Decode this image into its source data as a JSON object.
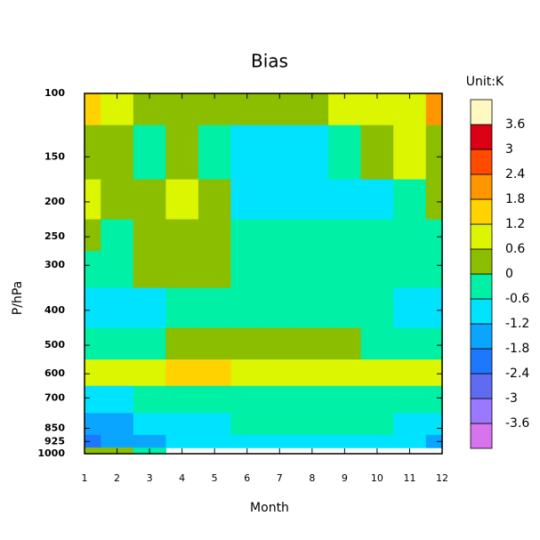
{
  "chart_data": {
    "type": "contour",
    "title": "Bias",
    "unit_label": "Unit:K",
    "x_label": "Month",
    "y_label": "P/hPa",
    "x": [
      1,
      2,
      3,
      4,
      5,
      6,
      7,
      8,
      9,
      10,
      11,
      12
    ],
    "y": [
      100,
      150,
      200,
      250,
      300,
      400,
      500,
      600,
      700,
      850,
      925,
      1000
    ],
    "xlim": [
      1,
      12
    ],
    "xticks": [
      1,
      2,
      3,
      4,
      5,
      6,
      7,
      8,
      9,
      10,
      11,
      12
    ],
    "ylim": [
      100,
      1000
    ],
    "yticks": [
      100,
      150,
      200,
      250,
      300,
      400,
      500,
      600,
      700,
      850,
      925,
      1000
    ],
    "y_scale": "log",
    "y_inverted": true,
    "z": [
      [
        1.3,
        0.8,
        0.3,
        0.3,
        0.3,
        0.2,
        0.2,
        0.1,
        0.8,
        0.8,
        1.0,
        1.9
      ],
      [
        0.3,
        0.3,
        -0.3,
        0.3,
        -0.3,
        -0.7,
        -0.7,
        -0.7,
        -0.5,
        0.3,
        0.7,
        0.2
      ],
      [
        0.8,
        0.3,
        0.3,
        0.8,
        0.2,
        -0.7,
        -0.8,
        -1.0,
        -0.8,
        -0.7,
        -0.3,
        0.3
      ],
      [
        0.3,
        -0.3,
        0.3,
        0.3,
        0.3,
        -0.3,
        -0.4,
        -0.5,
        -0.4,
        -0.3,
        -0.3,
        -0.2
      ],
      [
        -0.3,
        -0.3,
        0.2,
        0.2,
        0.1,
        -0.3,
        -0.3,
        -0.3,
        -0.3,
        -0.3,
        -0.3,
        -0.3
      ],
      [
        -0.7,
        -0.7,
        -0.7,
        -0.5,
        -0.3,
        -0.3,
        -0.3,
        -0.3,
        -0.3,
        -0.5,
        -0.7,
        -0.7
      ],
      [
        -0.2,
        -0.2,
        -0.2,
        0.1,
        0.2,
        0.2,
        0.2,
        0.1,
        0.1,
        -0.2,
        -0.2,
        -0.3
      ],
      [
        0.8,
        0.8,
        0.9,
        1.3,
        1.3,
        0.9,
        0.8,
        0.8,
        0.8,
        0.9,
        0.8,
        0.7
      ],
      [
        -0.7,
        -0.7,
        -0.5,
        -0.3,
        -0.3,
        -0.3,
        -0.3,
        -0.3,
        -0.3,
        -0.4,
        -0.5,
        -0.3
      ],
      [
        -1.5,
        -1.4,
        -1.0,
        -0.8,
        -0.7,
        -0.6,
        -0.5,
        -0.5,
        -0.5,
        -0.5,
        -0.8,
        -0.7
      ],
      [
        -1.9,
        -1.5,
        -1.3,
        -0.9,
        -0.8,
        -0.8,
        -0.8,
        -0.8,
        -0.8,
        -0.9,
        -1.0,
        -1.3
      ],
      [
        0.3,
        0.3,
        -0.3,
        null,
        null,
        null,
        null,
        null,
        null,
        null,
        null,
        null
      ]
    ],
    "levels": [
      -3.6,
      -3,
      -2.4,
      -1.8,
      -1.2,
      -0.6,
      0,
      0.6,
      1.2,
      1.8,
      2.4,
      3,
      3.6
    ],
    "colors": [
      "#d873f0",
      "#9a78ff",
      "#5f6cf2",
      "#1e78ff",
      "#0aa5ff",
      "#00e3ff",
      "#00f0a5",
      "#8cbe00",
      "#dcf500",
      "#ffd200",
      "#ff9600",
      "#ff4b00",
      "#dc0014",
      "#fff8c0"
    ]
  }
}
